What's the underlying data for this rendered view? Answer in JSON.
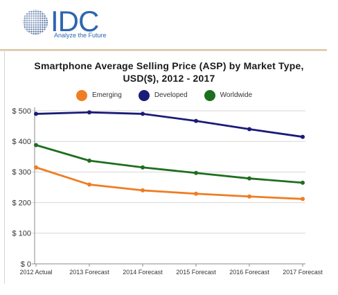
{
  "logo": {
    "brand": "IDC",
    "tagline": "Analyze the Future",
    "icon": "globe-icon",
    "brand_color": "#2e66b0"
  },
  "chart_data": {
    "type": "line",
    "title": "Smartphone Average Selling Price (ASP) by Market Type, USD($), 2012 - 2017",
    "categories": [
      "2012 Actual",
      "2013 Forecast",
      "2014 Forecast",
      "2015 Forecast",
      "2016 Forecast",
      "2017 Forecast"
    ],
    "series": [
      {
        "name": "Emerging",
        "values": [
          315,
          259,
          240,
          229,
          220,
          212
        ],
        "color": "#ef7d22"
      },
      {
        "name": "Developed",
        "values": [
          490,
          495,
          490,
          467,
          440,
          415
        ],
        "color": "#1b1b78"
      },
      {
        "name": "Worldwide",
        "values": [
          388,
          337,
          315,
          297,
          279,
          265
        ],
        "color": "#1e6e1e"
      }
    ],
    "ylim": [
      0,
      500
    ],
    "y_ticks": [
      0,
      100,
      200,
      300,
      400,
      500
    ],
    "y_tick_labels": [
      "$ 0",
      "$ 100",
      "$ 200",
      "$ 300",
      "$ 400",
      "$ 500"
    ],
    "grid": true,
    "legend_position": "top"
  }
}
